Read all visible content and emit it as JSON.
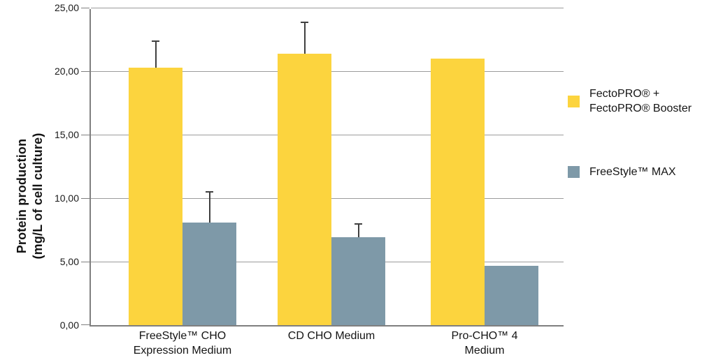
{
  "chart_data": {
    "type": "bar",
    "title": "",
    "ylabel_lines": [
      "Protein production",
      "(mg/L of cell culture)"
    ],
    "ylabel": "Protein production (mg/L of cell culture)",
    "xlabel": "",
    "ylim": [
      0,
      25
    ],
    "ytick_values": [
      0,
      5,
      10,
      15,
      20,
      25
    ],
    "ytick_labels": [
      "0,00",
      "5,00",
      "10,00",
      "15,00",
      "20,00",
      "25,00"
    ],
    "grid": true,
    "legend_position": "right",
    "categories": [
      {
        "lines": [
          "FreeStyle™ CHO",
          "Expression Medium"
        ]
      },
      {
        "lines": [
          "CD CHO Medium"
        ]
      },
      {
        "lines": [
          "Pro-CHO™ 4",
          "Medium"
        ]
      }
    ],
    "series": [
      {
        "name": "FectoPRO® + FectoPRO® Booster",
        "legend_lines": [
          "FectoPRO® +",
          "FectoPRO® Booster"
        ],
        "color": "#FCD43E",
        "values": [
          20.3,
          21.4,
          21.0
        ],
        "errors_plus": [
          2.1,
          2.5,
          0
        ]
      },
      {
        "name": "FreeStyle™ MAX",
        "legend_lines": [
          "FreeStyle™ MAX"
        ],
        "color": "#7E99A8",
        "values": [
          8.1,
          6.9,
          4.65
        ],
        "errors_plus": [
          2.45,
          1.1,
          0
        ]
      }
    ],
    "colors": {
      "grid": "#9b9b9b",
      "axis": "#7f7f7f",
      "error_bar": "#404040",
      "text": "#1a1a1a"
    }
  }
}
